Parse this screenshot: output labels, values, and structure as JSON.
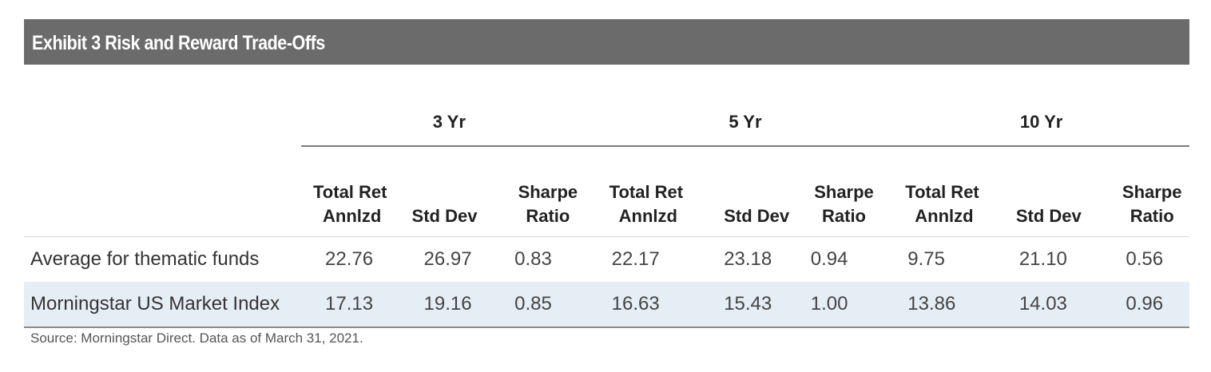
{
  "exhibit_title": "Exhibit 3  Risk and Reward Trade-Offs",
  "source_note": "Source: Morningstar Direct. Data as of March 31, 2021.",
  "chart_data": {
    "type": "table",
    "title": "Exhibit 3  Risk and Reward Trade-Offs",
    "period_groups": [
      "3 Yr",
      "5 Yr",
      "10 Yr"
    ],
    "metrics": [
      [
        "Total Ret",
        "Annlzd"
      ],
      [
        "Std Dev"
      ],
      [
        "Sharpe",
        "Ratio"
      ]
    ],
    "rows": [
      {
        "name": "Average for thematic funds",
        "values": [
          "22.76",
          "26.97",
          "0.83",
          "22.17",
          "23.18",
          "0.94",
          "9.75",
          "21.10",
          "0.56"
        ]
      },
      {
        "name": "Morningstar US Market Index",
        "values": [
          "17.13",
          "19.16",
          "0.85",
          "16.63",
          "15.43",
          "1.00",
          "13.86",
          "14.03",
          "0.96"
        ]
      }
    ],
    "row_highlight_color": "#e6eef5",
    "header_bar_color": "#6b6b6b"
  }
}
